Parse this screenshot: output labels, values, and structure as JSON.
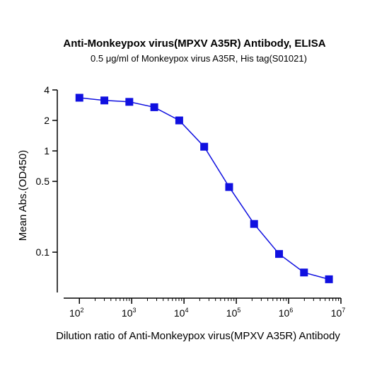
{
  "chart_data": {
    "type": "line",
    "title": "Anti-Monkeypox virus(MPXV A35R) Antibody, ELISA",
    "subtitle": "0.5 μg/ml of Monkeypox virus A35R, His tag(S01021)",
    "xlabel": "Dilution ratio of Anti-Monkeypox virus(MPXV A35R) Antibody",
    "ylabel": "Mean Abs.(OD450)",
    "x_scale": "log",
    "y_scale": "log",
    "xlim": [
      50,
      10000000
    ],
    "ylim": [
      0.04,
      4
    ],
    "x_ticks": [
      {
        "value": 100,
        "base": "10",
        "exp": "2"
      },
      {
        "value": 1000,
        "base": "10",
        "exp": "3"
      },
      {
        "value": 10000,
        "base": "10",
        "exp": "4"
      },
      {
        "value": 100000,
        "base": "10",
        "exp": "5"
      },
      {
        "value": 1000000,
        "base": "10",
        "exp": "6"
      },
      {
        "value": 10000000,
        "base": "10",
        "exp": "7"
      }
    ],
    "y_ticks": [
      {
        "value": 4,
        "label": "4"
      },
      {
        "value": 2,
        "label": "2"
      },
      {
        "value": 1,
        "label": "1"
      },
      {
        "value": 0.5,
        "label": "0.5"
      },
      {
        "value": 0.1,
        "label": "0.1"
      }
    ],
    "grid": false,
    "legend": "none",
    "color": "#1010e0",
    "series": [
      {
        "x": [
          100,
          300,
          900,
          2700,
          8100,
          24300,
          72900,
          218700,
          656100,
          1968300,
          5904900
        ],
        "y": [
          3.35,
          3.15,
          3.05,
          2.7,
          2.0,
          1.1,
          0.44,
          0.19,
          0.096,
          0.063,
          0.054
        ]
      }
    ]
  }
}
